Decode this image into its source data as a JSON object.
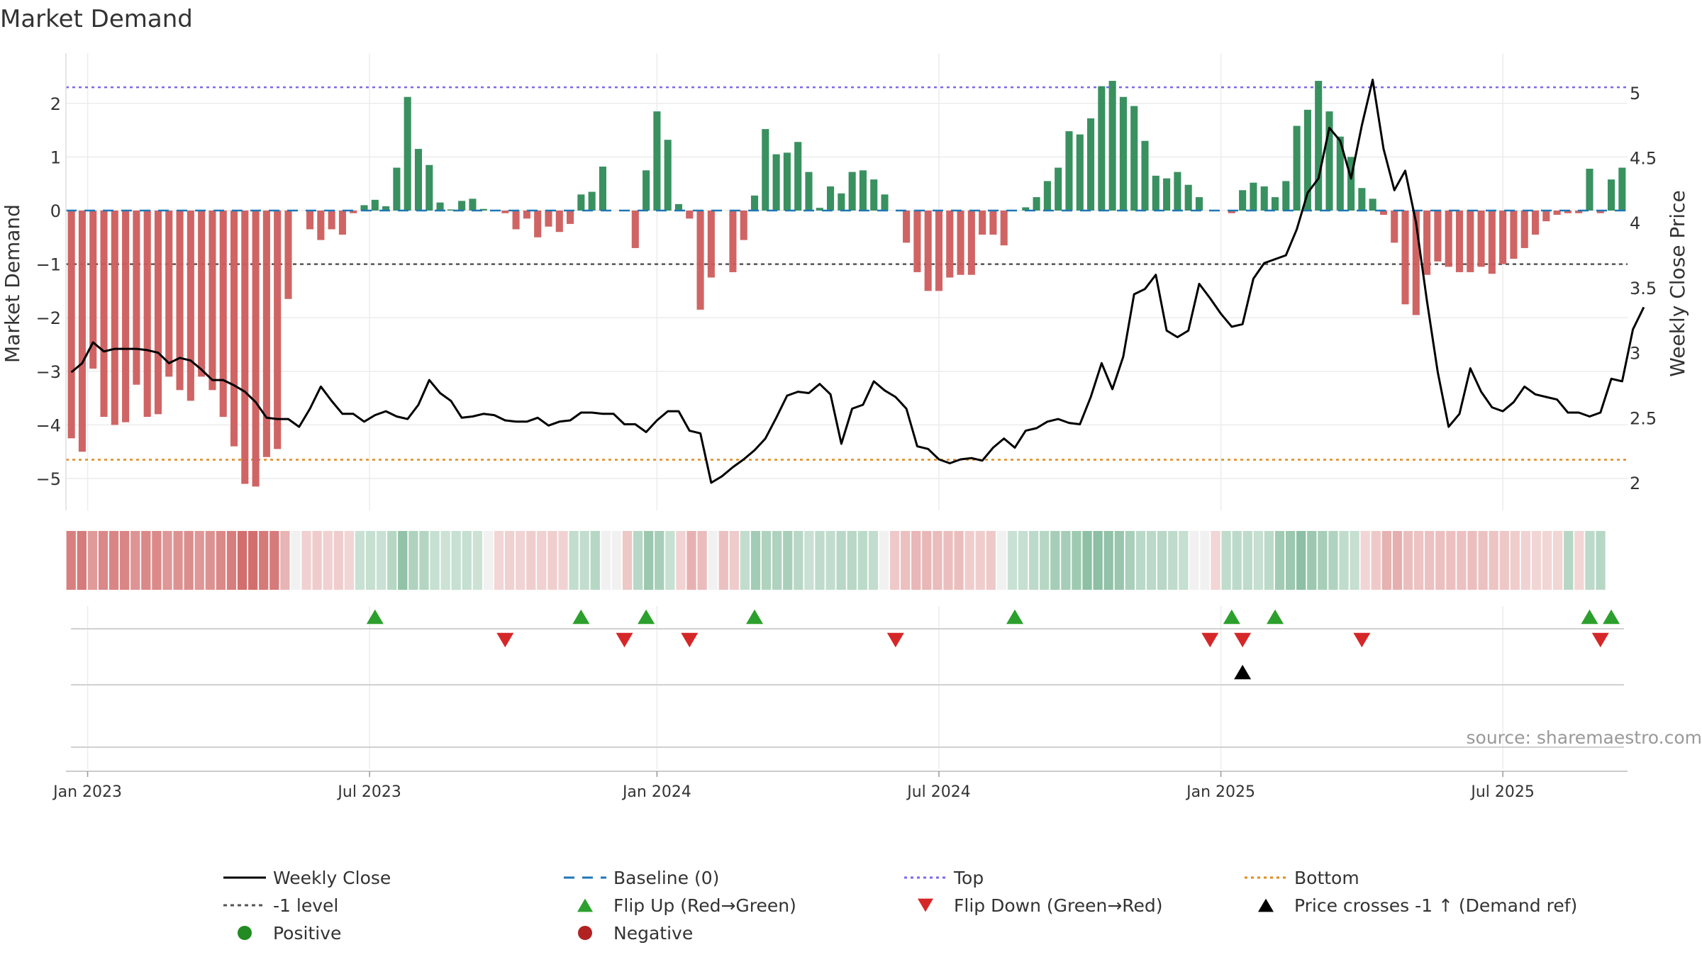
{
  "chart_data": {
    "type": "bar",
    "title": "Market Demand",
    "ylabel": "Market Demand",
    "y2label": "Weekly Close Price",
    "ylim": [
      -5.6,
      2.55
    ],
    "y2lim": [
      1.93,
      5.15
    ],
    "yticks": [
      "2",
      "1",
      "0",
      "−1",
      "−2",
      "−3",
      "−4",
      "−5"
    ],
    "y2ticks": [
      "5",
      "4.5",
      "4",
      "3.5",
      "3",
      "2.5",
      "2"
    ],
    "x_labels": [
      "Jan 2023",
      "Jul 2023",
      "Jan 2024",
      "Jul 2024",
      "Jan 2025",
      "Jul 2025"
    ],
    "x_label_weeks": [
      2,
      28,
      54.5,
      80.5,
      106.5,
      132.5
    ],
    "reference_lines": {
      "top": 2.3,
      "bottom": -4.65,
      "minus_one": -1
    },
    "demand": [
      -4.25,
      -4.5,
      -2.95,
      -3.85,
      -4.0,
      -3.95,
      -3.25,
      -3.85,
      -3.8,
      -3.1,
      -3.35,
      -3.55,
      -3.1,
      -3.35,
      -3.85,
      -4.4,
      -5.1,
      -5.15,
      -4.6,
      -4.45,
      -1.65,
      0,
      -0.35,
      -0.55,
      -0.35,
      -0.45,
      -0.05,
      0.1,
      0.2,
      0.08,
      0.8,
      2.12,
      1.15,
      0.85,
      0.15,
      0.02,
      0.18,
      0.22,
      0.03,
      0,
      -0.05,
      -0.35,
      -0.15,
      -0.5,
      -0.3,
      -0.4,
      -0.25,
      0.3,
      0.35,
      0.82,
      0,
      0,
      -0.7,
      0.75,
      1.85,
      1.32,
      0.12,
      -0.15,
      -1.85,
      -1.25,
      0,
      -1.15,
      -0.55,
      0.28,
      1.52,
      1.05,
      1.08,
      1.28,
      0.72,
      0.05,
      0.45,
      0.32,
      0.72,
      0.75,
      0.58,
      0.3,
      0,
      -0.6,
      -1.15,
      -1.5,
      -1.5,
      -1.25,
      -1.2,
      -1.2,
      -0.45,
      -0.45,
      -0.65,
      0,
      0.06,
      0.25,
      0.55,
      0.8,
      1.48,
      1.42,
      1.72,
      2.32,
      2.42,
      2.12,
      1.95,
      1.3,
      0.65,
      0.6,
      0.72,
      0.48,
      0.25,
      0,
      0,
      -0.05,
      0.38,
      0.52,
      0.45,
      0.25,
      0.55,
      1.58,
      1.88,
      2.42,
      1.85,
      1.38,
      1.0,
      0.42,
      0.22,
      -0.08,
      -0.6,
      -1.75,
      -1.95,
      -1.2,
      -0.95,
      -1.05,
      -1.15,
      -1.15,
      -1.05,
      -1.18,
      -1.0,
      -0.9,
      -0.7,
      -0.45,
      -0.2,
      -0.08,
      -0.05,
      -0.05,
      0.78,
      -0.05,
      0.58,
      0.8
    ],
    "price": [
      2.85,
      2.92,
      3.08,
      3.01,
      3.03,
      3.03,
      3.03,
      3.02,
      3.0,
      2.92,
      2.96,
      2.94,
      2.87,
      2.79,
      2.79,
      2.75,
      2.7,
      2.62,
      2.5,
      2.49,
      2.49,
      2.43,
      2.57,
      2.74,
      2.63,
      2.53,
      2.53,
      2.47,
      2.52,
      2.55,
      2.51,
      2.49,
      2.6,
      2.79,
      2.69,
      2.63,
      2.5,
      2.51,
      2.53,
      2.52,
      2.48,
      2.47,
      2.47,
      2.5,
      2.44,
      2.47,
      2.48,
      2.54,
      2.54,
      2.53,
      2.53,
      2.45,
      2.45,
      2.39,
      2.48,
      2.55,
      2.55,
      2.4,
      2.38,
      2.0,
      2.05,
      2.12,
      2.18,
      2.25,
      2.34,
      2.5,
      2.67,
      2.7,
      2.69,
      2.76,
      2.68,
      2.3,
      2.57,
      2.6,
      2.78,
      2.71,
      2.66,
      2.57,
      2.28,
      2.26,
      2.18,
      2.15,
      2.18,
      2.19,
      2.17,
      2.27,
      2.34,
      2.27,
      2.4,
      2.42,
      2.47,
      2.49,
      2.46,
      2.45,
      2.66,
      2.92,
      2.72,
      2.97,
      3.45,
      3.49,
      3.6,
      3.17,
      3.12,
      3.17,
      3.53,
      3.42,
      3.3,
      3.2,
      3.22,
      3.57,
      3.69,
      3.72,
      3.75,
      3.95,
      4.23,
      4.34,
      4.73,
      4.63,
      4.34,
      4.75,
      5.1,
      4.57,
      4.25,
      4.4,
      4.0,
      3.4,
      2.85,
      2.43,
      2.53,
      2.88,
      2.7,
      2.58,
      2.55,
      2.62,
      2.74,
      2.68,
      2.66,
      2.64,
      2.54,
      2.54,
      2.51,
      2.54,
      2.8,
      2.78,
      3.18,
      3.35
    ],
    "bottom_strip_weeks": 146,
    "flip_up_weeks": [
      28,
      47,
      53,
      63,
      87,
      107,
      111,
      140,
      142
    ],
    "flip_down_weeks": [
      40,
      51,
      57,
      76,
      105,
      108,
      119,
      141
    ],
    "price_cross_weeks": [
      108
    ]
  },
  "source_label": "source: sharemaestro.com",
  "colors": {
    "positive_bar": "#2e8b57",
    "negative_bar": "#cd5c5c",
    "price_line": "#000000",
    "baseline": "#1f77b4",
    "top_line": "#7b68ee",
    "bottom_line": "#e08a1e",
    "minus_one_line": "#555555",
    "flip_up": "#2ca02c",
    "flip_down": "#d62728",
    "cross": "#000000"
  },
  "legend": {
    "items": [
      {
        "label": "Weekly Close",
        "marker": "line"
      },
      {
        "label": "Baseline (0)",
        "marker": "dash"
      },
      {
        "label": "Top",
        "marker": "dot-line"
      },
      {
        "label": "Bottom",
        "marker": "dot-line"
      },
      {
        "label": "-1 level",
        "marker": "dot-line"
      },
      {
        "label": "Flip Up (Red→Green)",
        "marker": "triangle-up"
      },
      {
        "label": "Flip Down (Green→Red)",
        "marker": "triangle-down"
      },
      {
        "label": "Price crosses -1 ↑ (Demand ref)",
        "marker": "triangle-up"
      },
      {
        "label": "Positive",
        "marker": "circle"
      },
      {
        "label": "Negative",
        "marker": "circle"
      }
    ]
  }
}
